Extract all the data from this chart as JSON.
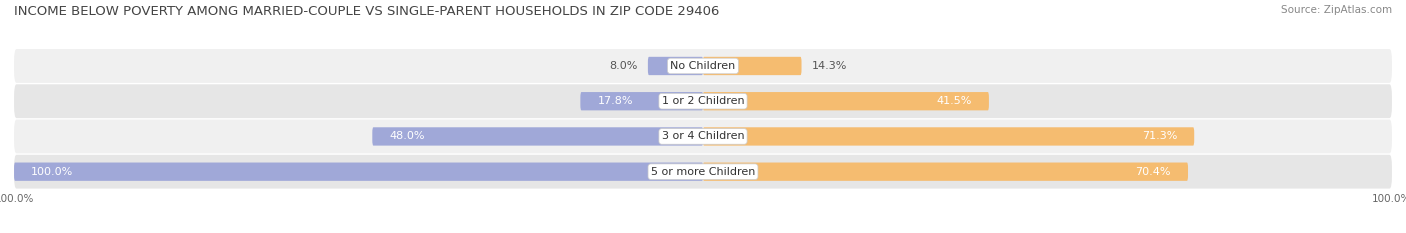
{
  "title": "INCOME BELOW POVERTY AMONG MARRIED-COUPLE VS SINGLE-PARENT HOUSEHOLDS IN ZIP CODE 29406",
  "source": "Source: ZipAtlas.com",
  "categories": [
    "No Children",
    "1 or 2 Children",
    "3 or 4 Children",
    "5 or more Children"
  ],
  "married_values": [
    8.0,
    17.8,
    48.0,
    100.0
  ],
  "single_values": [
    14.3,
    41.5,
    71.3,
    70.4
  ],
  "married_color": "#a0a8d8",
  "single_color": "#f5bc70",
  "row_bg_even": "#f0f0f0",
  "row_bg_odd": "#e6e6e6",
  "title_fontsize": 9.5,
  "label_fontsize": 8.0,
  "source_fontsize": 7.5,
  "axis_max": 100.0,
  "bar_height": 0.52,
  "fig_bg": "#ffffff",
  "text_color_dark": "#555555",
  "text_color_light": "#ffffff"
}
